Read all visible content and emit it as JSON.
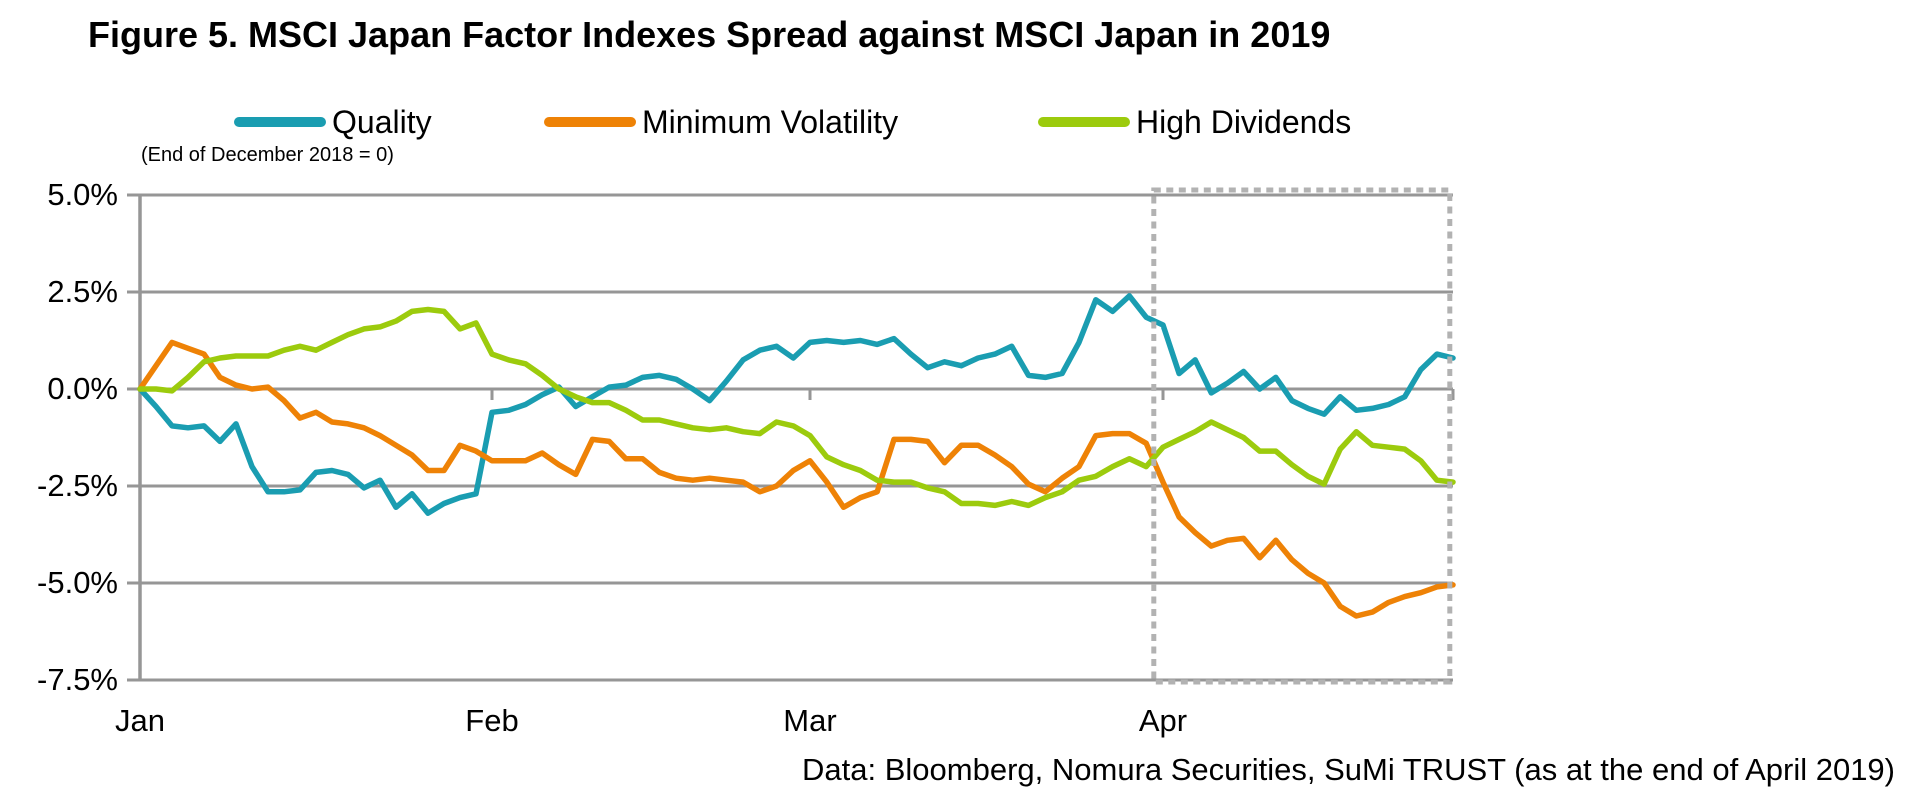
{
  "chart_data": {
    "type": "line",
    "title": "Figure 5. MSCI Japan Factor Indexes Spread against MSCI Japan in 2019",
    "note": "(End of December 2018 = 0)",
    "source": "Data: Bloomberg, Nomura Securities, SuMi TRUST (as at the end of April 2019)",
    "ylim": [
      -7.5,
      5.0
    ],
    "y_unit": "%",
    "y_ticks": [
      5.0,
      2.5,
      0.0,
      -2.5,
      -5.0,
      -7.5
    ],
    "y_tick_labels": [
      "5.0%",
      "2.5%",
      "0.0%",
      "-2.5%",
      "-5.0%",
      "-7.5%"
    ],
    "x_tick_labels": [
      "Jan",
      "Feb",
      "Mar",
      "Apr"
    ],
    "month_start_day_index": [
      0,
      22,
      41,
      62
    ],
    "total_days": 81,
    "grid": "horizontal",
    "legend_position": "top",
    "highlight_box": {
      "label": "April 2019 highlight",
      "start_day": 61.45,
      "end_day": 79.8
    },
    "colors": {
      "quality": "#1a9db1",
      "minimum_volatility": "#ee8206",
      "high_dividends": "#9ccb0d",
      "gridline": "#969696",
      "axis": "#969696",
      "highlight_box": "#b2b2b2",
      "text": "#000000",
      "background": "#ffffff"
    },
    "series": [
      {
        "name": "Quality",
        "color": "#1a9db1",
        "values": [
          0.0,
          -0.45,
          -0.95,
          -1.0,
          -0.95,
          -1.35,
          -0.9,
          -2.0,
          -2.65,
          -2.65,
          -2.6,
          -2.15,
          -2.1,
          -2.2,
          -2.55,
          -2.35,
          -3.05,
          -2.7,
          -3.2,
          -2.95,
          -2.8,
          -2.7,
          -0.6,
          -0.55,
          -0.4,
          -0.15,
          0.05,
          -0.45,
          -0.2,
          0.05,
          0.1,
          0.3,
          0.35,
          0.25,
          0.0,
          -0.3,
          0.2,
          0.75,
          1.0,
          1.1,
          0.8,
          1.2,
          1.25,
          1.2,
          1.25,
          1.15,
          1.3,
          0.9,
          0.55,
          0.7,
          0.6,
          0.8,
          0.9,
          1.1,
          0.35,
          0.3,
          0.4,
          1.2,
          2.3,
          2.0,
          2.4,
          1.85,
          1.65,
          0.4,
          0.75,
          -0.1,
          0.15,
          0.45,
          0.0,
          0.3,
          -0.3,
          -0.5,
          -0.65,
          -0.2,
          -0.55,
          -0.5,
          -0.4,
          -0.2,
          0.5,
          0.9,
          0.8
        ]
      },
      {
        "name": "Minimum Volatility",
        "color": "#ee8206",
        "values": [
          0.0,
          0.6,
          1.2,
          1.05,
          0.9,
          0.3,
          0.1,
          0.0,
          0.05,
          -0.3,
          -0.75,
          -0.6,
          -0.85,
          -0.9,
          -1.0,
          -1.2,
          -1.45,
          -1.7,
          -2.1,
          -2.1,
          -1.45,
          -1.6,
          -1.85,
          -1.85,
          -1.85,
          -1.65,
          -1.95,
          -2.2,
          -1.3,
          -1.35,
          -1.8,
          -1.8,
          -2.15,
          -2.3,
          -2.35,
          -2.3,
          -2.35,
          -2.4,
          -2.65,
          -2.5,
          -2.1,
          -1.85,
          -2.4,
          -3.05,
          -2.8,
          -2.65,
          -1.3,
          -1.3,
          -1.35,
          -1.9,
          -1.45,
          -1.45,
          -1.7,
          -2.0,
          -2.45,
          -2.65,
          -2.3,
          -2.0,
          -1.2,
          -1.15,
          -1.15,
          -1.4,
          -2.4,
          -3.3,
          -3.7,
          -4.05,
          -3.9,
          -3.85,
          -4.35,
          -3.9,
          -4.4,
          -4.75,
          -5.0,
          -5.6,
          -5.85,
          -5.75,
          -5.5,
          -5.35,
          -5.25,
          -5.1,
          -5.05
        ]
      },
      {
        "name": "High Dividends",
        "color": "#9ccb0d",
        "values": [
          0.0,
          0.0,
          -0.05,
          0.3,
          0.7,
          0.8,
          0.85,
          0.85,
          0.85,
          1.0,
          1.1,
          1.0,
          1.2,
          1.4,
          1.55,
          1.6,
          1.75,
          2.0,
          2.05,
          2.0,
          1.55,
          1.7,
          0.9,
          0.75,
          0.65,
          0.35,
          0.0,
          -0.2,
          -0.35,
          -0.35,
          -0.55,
          -0.8,
          -0.8,
          -0.9,
          -1.0,
          -1.05,
          -1.0,
          -1.1,
          -1.15,
          -0.85,
          -0.95,
          -1.2,
          -1.75,
          -1.95,
          -2.1,
          -2.35,
          -2.4,
          -2.4,
          -2.55,
          -2.65,
          -2.95,
          -2.95,
          -3.0,
          -2.9,
          -3.0,
          -2.8,
          -2.65,
          -2.35,
          -2.25,
          -2.0,
          -1.8,
          -2.0,
          -1.5,
          -1.3,
          -1.1,
          -0.85,
          -1.05,
          -1.25,
          -1.6,
          -1.6,
          -1.95,
          -2.25,
          -2.45,
          -1.55,
          -1.1,
          -1.45,
          -1.5,
          -1.55,
          -1.85,
          -2.35,
          -2.4
        ]
      }
    ]
  }
}
